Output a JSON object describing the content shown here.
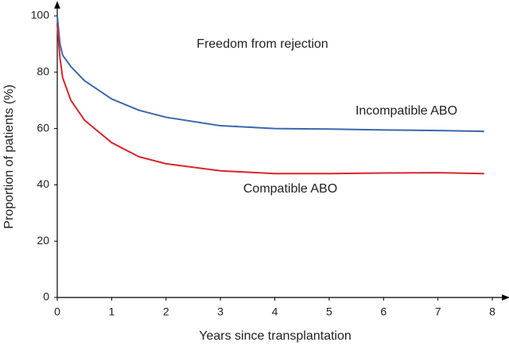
{
  "chart_data": {
    "type": "line",
    "title": "Freedom from rejection",
    "x_label": "Years since transplantation",
    "y_label": "Proportion of patients (%)",
    "x": [
      0,
      0.05,
      0.1,
      0.25,
      0.5,
      1,
      1.5,
      2,
      3,
      4,
      5,
      6,
      7,
      7.85
    ],
    "series": [
      {
        "name": "Incompatible ABO",
        "color": "#3b67b0",
        "values": [
          100,
          90,
          86,
          82,
          77,
          70.5,
          66.5,
          64,
          61,
          60,
          59.8,
          59.5,
          59.3,
          59
        ]
      },
      {
        "name": "Compatible ABO",
        "color": "#d9262b",
        "values": [
          97,
          85,
          78,
          70,
          63,
          55,
          50,
          47.5,
          45,
          44,
          44,
          44.2,
          44.3,
          44
        ]
      }
    ],
    "xlim": [
      0,
      8
    ],
    "xticks": [
      0,
      1,
      2,
      3,
      4,
      5,
      6,
      7,
      8
    ],
    "ylim": [
      0,
      100
    ],
    "yticks": [
      0,
      20,
      40,
      60,
      80,
      100
    ]
  }
}
